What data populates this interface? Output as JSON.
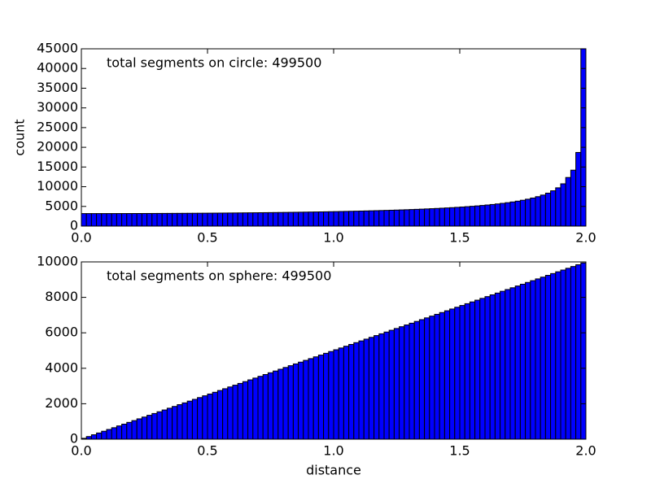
{
  "chart_data": [
    {
      "type": "histogram",
      "annotation": "total segments on circle: 499500",
      "ylabel": "count",
      "color": "#0000ff",
      "bins": [
        0,
        0.02,
        0.04,
        0.06,
        0.08,
        0.1,
        0.12,
        0.14,
        0.16,
        0.18,
        0.2,
        0.22,
        0.24,
        0.26,
        0.28,
        0.3,
        0.32,
        0.34,
        0.36,
        0.38,
        0.4,
        0.42,
        0.44,
        0.46,
        0.48,
        0.5,
        0.52,
        0.54,
        0.56,
        0.58,
        0.6,
        0.62,
        0.64,
        0.66,
        0.68,
        0.7,
        0.72,
        0.74,
        0.76,
        0.78,
        0.8,
        0.82,
        0.84,
        0.86,
        0.88,
        0.9,
        0.92,
        0.94,
        0.96,
        0.98,
        1,
        1.02,
        1.04,
        1.06,
        1.08,
        1.1,
        1.12,
        1.14,
        1.16,
        1.18,
        1.2,
        1.22,
        1.24,
        1.26,
        1.28,
        1.3,
        1.32,
        1.34,
        1.36,
        1.38,
        1.4,
        1.42,
        1.44,
        1.46,
        1.48,
        1.5,
        1.52,
        1.54,
        1.56,
        1.58,
        1.6,
        1.62,
        1.64,
        1.66,
        1.68,
        1.7,
        1.72,
        1.74,
        1.76,
        1.78,
        1.8,
        1.82,
        1.84,
        1.86,
        1.88,
        1.9,
        1.92,
        1.94,
        1.96,
        1.98,
        2
      ],
      "values": [
        3180,
        3180,
        3181,
        3182,
        3183,
        3184,
        3186,
        3188,
        3190,
        3193,
        3198,
        3201,
        3205,
        3209,
        3214,
        3219,
        3224,
        3230,
        3236,
        3242,
        3249,
        3256,
        3264,
        3272,
        3280,
        3289,
        3298,
        3307,
        3317,
        3328,
        3339,
        3351,
        3363,
        3375,
        3388,
        3402,
        3416,
        3430,
        3446,
        3461,
        3478,
        3495,
        3513,
        3531,
        3551,
        3571,
        3592,
        3614,
        3636,
        3660,
        3684,
        3710,
        3736,
        3764,
        3792,
        3823,
        3854,
        3887,
        3921,
        3957,
        3994,
        4033,
        4074,
        4117,
        4161,
        4208,
        4258,
        4310,
        4365,
        4423,
        4484,
        4549,
        4617,
        4690,
        4767,
        4850,
        4937,
        5032,
        5133,
        5242,
        5360,
        5487,
        5626,
        5779,
        5946,
        6131,
        6337,
        6569,
        6830,
        7129,
        7475,
        7881,
        8368,
        8965,
        9722,
        10739,
        12342,
        14199,
        18695,
        45013
      ],
      "xlim": [
        0,
        2
      ],
      "xticks": [
        {
          "value": 0,
          "label": "0.0"
        },
        0.5,
        {
          "value": 1,
          "label": "1.0"
        },
        1.5,
        {
          "value": 2,
          "label": "2.0"
        }
      ],
      "ylim": [
        0,
        45000
      ],
      "yticks": [
        0,
        5000,
        10000,
        15000,
        20000,
        25000,
        30000,
        35000,
        40000,
        45000
      ]
    },
    {
      "type": "histogram",
      "annotation": "total segments on sphere: 499500",
      "xlabel": "distance",
      "color": "#0000ff",
      "bins": [
        0,
        0.02,
        0.04,
        0.06,
        0.08,
        0.1,
        0.12,
        0.14,
        0.16,
        0.18,
        0.2,
        0.22,
        0.24,
        0.26,
        0.28,
        0.3,
        0.32,
        0.34,
        0.36,
        0.38,
        0.4,
        0.42,
        0.44,
        0.46,
        0.48,
        0.5,
        0.52,
        0.54,
        0.56,
        0.58,
        0.6,
        0.62,
        0.64,
        0.66,
        0.68,
        0.7,
        0.72,
        0.74,
        0.76,
        0.78,
        0.8,
        0.82,
        0.84,
        0.86,
        0.88,
        0.9,
        0.92,
        0.94,
        0.96,
        0.98,
        1,
        1.02,
        1.04,
        1.06,
        1.08,
        1.1,
        1.12,
        1.14,
        1.16,
        1.18,
        1.2,
        1.22,
        1.24,
        1.26,
        1.28,
        1.3,
        1.32,
        1.34,
        1.36,
        1.38,
        1.4,
        1.42,
        1.44,
        1.46,
        1.48,
        1.5,
        1.52,
        1.54,
        1.56,
        1.58,
        1.6,
        1.62,
        1.64,
        1.66,
        1.68,
        1.7,
        1.72,
        1.74,
        1.76,
        1.78,
        1.8,
        1.82,
        1.84,
        1.86,
        1.88,
        1.9,
        1.92,
        1.94,
        1.96,
        1.98,
        2
      ],
      "values": [
        50,
        150,
        250,
        350,
        450,
        549,
        649,
        749,
        849,
        949,
        1049,
        1149,
        1249,
        1349,
        1449,
        1548,
        1648,
        1748,
        1848,
        1948,
        2048,
        2148,
        2248,
        2348,
        2448,
        2547,
        2647,
        2747,
        2847,
        2947,
        3047,
        3147,
        3247,
        3347,
        3447,
        3546,
        3646,
        3746,
        3846,
        3946,
        4046,
        4146,
        4246,
        4346,
        4446,
        4545,
        4645,
        4745,
        4845,
        4945,
        5045,
        5145,
        5245,
        5345,
        5445,
        5544,
        5644,
        5744,
        5844,
        5944,
        6044,
        6144,
        6244,
        6344,
        6444,
        6543,
        6643,
        6743,
        6843,
        6943,
        7043,
        7143,
        7243,
        7343,
        7443,
        7542,
        7642,
        7742,
        7842,
        7942,
        8042,
        8142,
        8242,
        8342,
        8442,
        8541,
        8641,
        8741,
        8841,
        8941,
        9041,
        9141,
        9241,
        9341,
        9441,
        9540,
        9640,
        9740,
        9840,
        9940
      ],
      "xlim": [
        0,
        2
      ],
      "xticks": [
        {
          "value": 0,
          "label": "0.0"
        },
        0.5,
        {
          "value": 1,
          "label": "1.0"
        },
        1.5,
        {
          "value": 2,
          "label": "2.0"
        }
      ],
      "ylim": [
        0,
        10000
      ],
      "yticks": [
        0,
        2000,
        4000,
        6000,
        8000,
        10000
      ]
    }
  ]
}
